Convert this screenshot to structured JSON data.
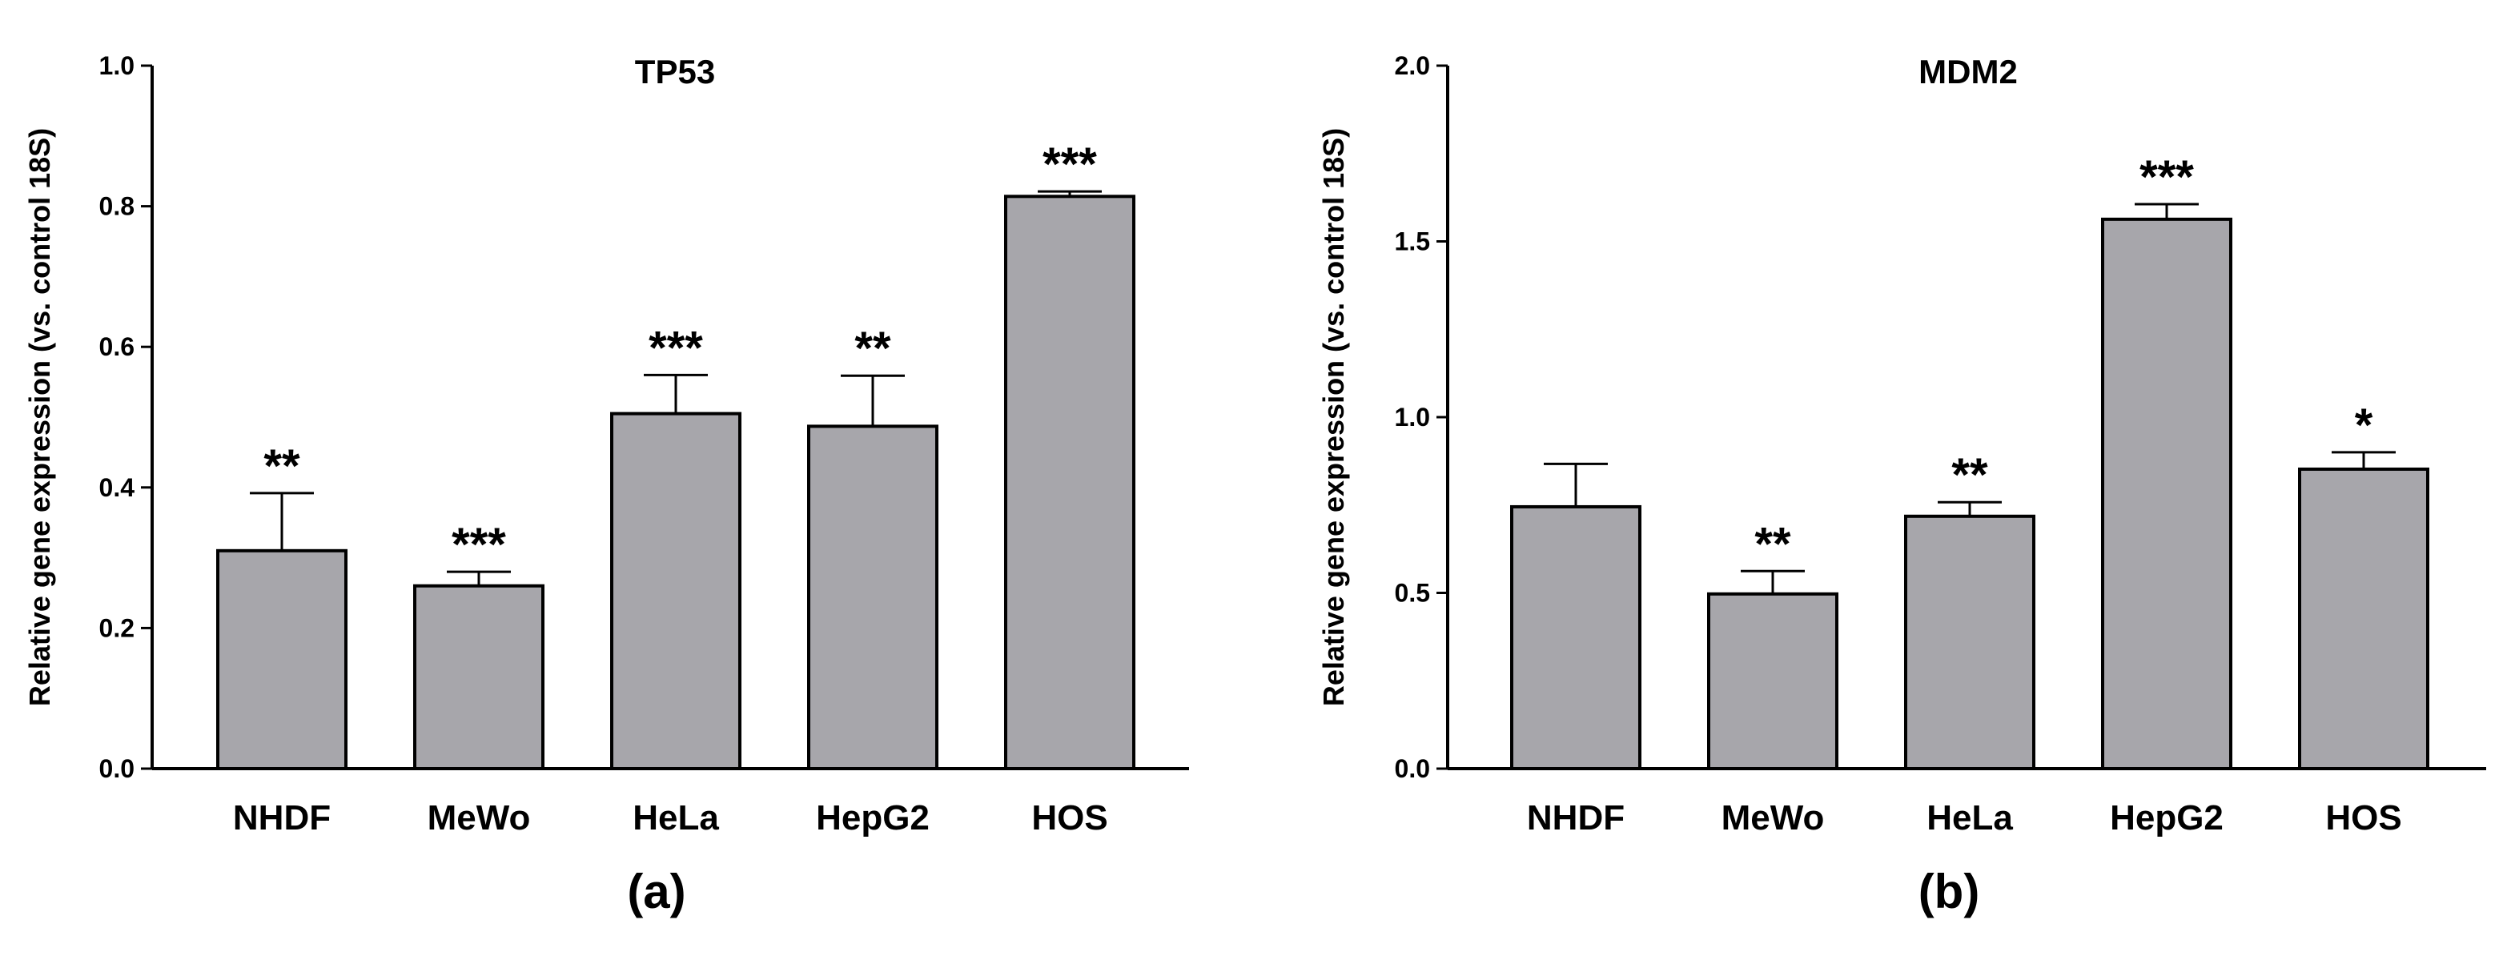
{
  "chart_data": [
    {
      "type": "bar",
      "title": "TP53",
      "ylabel": "Relative gene expression (vs. control 18S)",
      "xlabel": "",
      "panel_label": "(a)",
      "categories": [
        "NHDF",
        "MeWo",
        "HeLa",
        "HepG2",
        "HOS"
      ],
      "values": [
        0.31,
        0.26,
        0.505,
        0.487,
        0.814
      ],
      "errors": [
        0.082,
        0.02,
        0.055,
        0.072,
        0.007
      ],
      "significance": [
        "**",
        "***",
        "***",
        "**",
        "***"
      ],
      "ylim": [
        0,
        1.0
      ],
      "yticks": [
        0.0,
        0.2,
        0.4,
        0.6,
        0.8,
        1.0
      ],
      "ytick_labels": [
        "0.0",
        "0.2",
        "0.4",
        "0.6",
        "0.8",
        "1.0"
      ],
      "bar_color": "#a7a6ab",
      "grid": false
    },
    {
      "type": "bar",
      "title": "MDM2",
      "ylabel": "Relative gene expression (vs. control 18S)",
      "xlabel": "",
      "panel_label": "(b)",
      "categories": [
        "NHDF",
        "MeWo",
        "HeLa",
        "HepG2",
        "HOS"
      ],
      "values": [
        0.745,
        0.497,
        0.718,
        1.563,
        0.852
      ],
      "errors": [
        0.122,
        0.065,
        0.04,
        0.043,
        0.048
      ],
      "significance": [
        "",
        "**",
        "**",
        "***",
        "*"
      ],
      "ylim": [
        0,
        2.0
      ],
      "yticks": [
        0.0,
        0.5,
        1.0,
        1.5,
        2.0
      ],
      "ytick_labels": [
        "0.0",
        "0.5",
        "1.0",
        "1.5",
        "2.0"
      ],
      "bar_color": "#a7a6ab",
      "grid": false
    }
  ]
}
